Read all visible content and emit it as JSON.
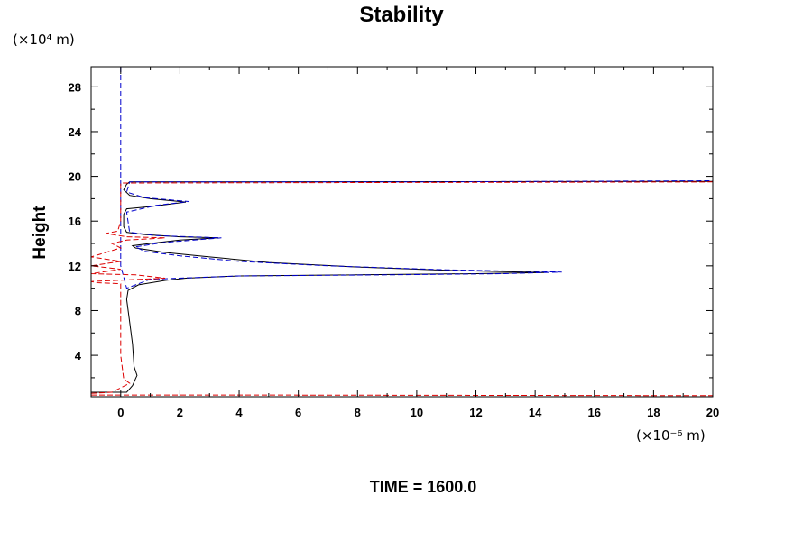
{
  "chart_data": {
    "type": "line",
    "title": "Stability",
    "ylabel": "Height",
    "xlabel": "",
    "y_unit": "(×10⁴ m)",
    "x_unit": "(×10⁻⁶ m)",
    "xlim": [
      -1,
      20
    ],
    "ylim": [
      0.3,
      29.8
    ],
    "xticks": [
      0,
      2,
      4,
      6,
      8,
      10,
      12,
      14,
      16,
      18,
      20
    ],
    "yticks": [
      4,
      8,
      12,
      16,
      20,
      24,
      28
    ],
    "grid": false,
    "colors": {
      "series_1": "#000000",
      "series_2": "#0000cc",
      "series_3": "#dd0000"
    },
    "series": [
      {
        "style": "solid",
        "color": "#000000",
        "points": [
          [
            -1,
            0.7
          ],
          [
            0.2,
            0.7
          ],
          [
            0.4,
            1.3
          ],
          [
            0.5,
            1.9
          ],
          [
            0.55,
            2.2
          ],
          [
            0.45,
            3
          ],
          [
            0.4,
            5
          ],
          [
            0.3,
            7
          ],
          [
            0.2,
            9
          ],
          [
            0.25,
            9.8
          ],
          [
            0.6,
            10.3
          ],
          [
            1.5,
            10.7
          ],
          [
            2.2,
            10.9
          ],
          [
            4,
            11.1
          ],
          [
            8,
            11.2
          ],
          [
            12,
            11.3
          ],
          [
            14.3,
            11.4
          ],
          [
            11,
            11.6
          ],
          [
            8,
            11.9
          ],
          [
            5,
            12.3
          ],
          [
            3,
            12.8
          ],
          [
            1.5,
            13.2
          ],
          [
            0.5,
            13.6
          ],
          [
            0.4,
            13.8
          ],
          [
            1,
            14
          ],
          [
            2,
            14.3
          ],
          [
            3.3,
            14.5
          ],
          [
            2,
            14.6
          ],
          [
            0.8,
            14.8
          ],
          [
            0.2,
            15
          ],
          [
            0.1,
            15.5
          ],
          [
            0.1,
            16.6
          ],
          [
            0.2,
            17.1
          ],
          [
            1,
            17.3
          ],
          [
            2.2,
            17.7
          ],
          [
            1,
            18
          ],
          [
            0.3,
            18.3
          ],
          [
            0.1,
            18.8
          ],
          [
            0.2,
            19.3
          ],
          [
            0.3,
            19.5
          ],
          [
            20,
            19.55
          ]
        ]
      },
      {
        "style": "dashed",
        "color": "#0000cc",
        "points": [
          [
            0,
            29.8
          ],
          [
            0,
            19.2
          ],
          [
            0,
            12
          ],
          [
            0.2,
            10
          ],
          [
            1,
            10.8
          ],
          [
            4,
            11.1
          ],
          [
            9,
            11.2
          ],
          [
            13,
            11.3
          ],
          [
            14.9,
            11.45
          ],
          [
            11,
            11.65
          ],
          [
            7,
            12
          ],
          [
            4,
            12.4
          ],
          [
            2,
            12.9
          ],
          [
            0.8,
            13.3
          ],
          [
            0.5,
            13.7
          ],
          [
            1.5,
            14.1
          ],
          [
            3.4,
            14.5
          ],
          [
            1.2,
            14.7
          ],
          [
            0.3,
            15
          ],
          [
            0.2,
            16.8
          ],
          [
            1.2,
            17.4
          ],
          [
            2.3,
            17.75
          ],
          [
            0.8,
            18.1
          ],
          [
            0.2,
            18.6
          ],
          [
            0.3,
            19.5
          ],
          [
            10,
            19.5
          ],
          [
            20,
            19.6
          ]
        ]
      },
      {
        "style": "dashed",
        "color": "#dd0000",
        "points": [
          [
            -1,
            0.6
          ],
          [
            -0.3,
            0.7
          ],
          [
            0.3,
            1.5
          ],
          [
            0.1,
            1.9
          ],
          [
            0,
            4
          ],
          [
            0,
            10.4
          ],
          [
            -0.8,
            10.5
          ],
          [
            -1,
            10.6
          ],
          [
            1.5,
            10.9
          ],
          [
            0.5,
            11.2
          ],
          [
            -1,
            11.3
          ],
          [
            0,
            11.7
          ],
          [
            -1,
            12
          ],
          [
            0,
            12.4
          ],
          [
            -1,
            12.8
          ],
          [
            0,
            13.6
          ],
          [
            -0.3,
            14
          ],
          [
            0.2,
            14.3
          ],
          [
            1.5,
            14.5
          ],
          [
            0.2,
            14.6
          ],
          [
            -0.5,
            14.9
          ],
          [
            -0.1,
            15.1
          ],
          [
            0,
            16
          ],
          [
            0,
            19.4
          ],
          [
            20,
            19.5
          ]
        ]
      },
      {
        "style": "dashed",
        "color": "#dd0000",
        "points": [
          [
            -1,
            0.45
          ],
          [
            4,
            0.45
          ],
          [
            20,
            0.4
          ]
        ]
      }
    ]
  },
  "footer": {
    "time_label": "TIME = 1600.0"
  }
}
